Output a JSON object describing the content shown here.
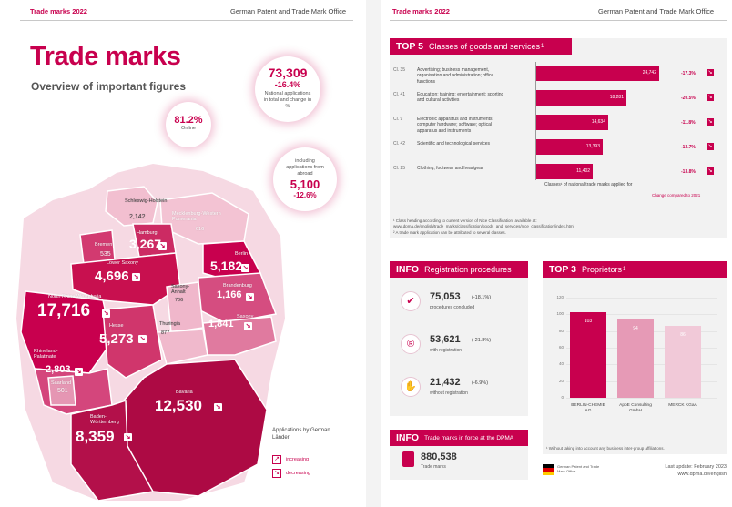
{
  "header": {
    "brand": "Trade marks 2022",
    "office": "German Patent and Trade Mark Office"
  },
  "left": {
    "title": "Trade marks",
    "subtitle": "Overview of important figures",
    "bubble_main": {
      "value": "73,309",
      "change": "-16.4%",
      "caption": "National applications in total and change in %"
    },
    "bubble_online": {
      "value": "81.2%",
      "caption": "Online"
    },
    "bubble_abroad": {
      "caption": "including applications from abroad",
      "value": "5,100",
      "change": "-12.6%"
    },
    "states": [
      {
        "name": "Schleswig-Holstein",
        "value": "2,142"
      },
      {
        "name": "Mecklenburg-Western Pomerania",
        "value": "616"
      },
      {
        "name": "Hamburg",
        "value": "3,267"
      },
      {
        "name": "Bremen",
        "value": "535"
      },
      {
        "name": "Lower Saxony",
        "value": "4,696"
      },
      {
        "name": "Berlin",
        "value": "5,182"
      },
      {
        "name": "Saxony-Anhalt",
        "value": "706"
      },
      {
        "name": "Brandenburg",
        "value": "1,166"
      },
      {
        "name": "North Rhine-Westphalia",
        "value": "17,716"
      },
      {
        "name": "Hesse",
        "value": "5,273"
      },
      {
        "name": "Thuringia",
        "value": "877"
      },
      {
        "name": "Saxony",
        "value": "1,841"
      },
      {
        "name": "Rhineland-Palatinate",
        "value": "2,803"
      },
      {
        "name": "Saarland",
        "value": "501"
      },
      {
        "name": "Bavaria",
        "value": "12,530"
      },
      {
        "name": "Baden-Württemberg",
        "value": "8,359"
      }
    ],
    "map_note": "Applications by German Länder",
    "legend": {
      "increasing": "increasing",
      "decreasing": "decreasing"
    },
    "colors": {
      "accent": "#c8004e"
    }
  },
  "top5": {
    "prefix": "TOP 5",
    "title": "Classes of goods and services",
    "footnote_mark": "1",
    "classes": [
      {
        "code": "Cl. 35",
        "desc": "Advertising; business management, organisation and administration; office functions",
        "value": 24742,
        "label": "24,742",
        "change": "-17.3%"
      },
      {
        "code": "Cl. 41",
        "desc": "Education; training; entertainment; sporting and cultural activities",
        "value": 18281,
        "label": "18,281",
        "change": "-20.5%"
      },
      {
        "code": "Cl. 9",
        "desc": "Electronic apparatus and instruments; computer hardware; software; optical apparatus and instruments",
        "value": 14634,
        "label": "14,634",
        "change": "-11.8%"
      },
      {
        "code": "Cl. 42",
        "desc": "Scientific and technological services",
        "value": 13393,
        "label": "13,393",
        "change": "-13.7%"
      },
      {
        "code": "Cl. 25",
        "desc": "Clothing, footwear and headgear",
        "value": 11402,
        "label": "11,402",
        "change": "-13.8%"
      }
    ],
    "axis_caption": "Classes¹ of national trade marks applied for",
    "change_caption": "Change compared to 2021",
    "footnotes": [
      "¹ Class heading according to current version of Nice Classification, available at: www.dpma.de/english/trade_marks/classification/goods_and_services/nice_classification/index.html",
      "² A trade mark application can be attributed to several classes."
    ]
  },
  "info_registration": {
    "prefix": "INFO",
    "title": "Registration procedures",
    "items": [
      {
        "value": "75,053",
        "change": "(-18.1%)",
        "caption": "procedures concluded",
        "icon": "check-icon"
      },
      {
        "value": "53,621",
        "change": "(-21.8%)",
        "caption": "with registration",
        "icon": "registered-icon"
      },
      {
        "value": "21,432",
        "change": "(-6.9%)",
        "caption": "without registration",
        "icon": "thumbs-down-icon"
      }
    ]
  },
  "info_in_force": {
    "prefix": "INFO",
    "title": "Trade marks in force at the DPMA",
    "value": "880,538",
    "caption": "Trade marks"
  },
  "top3": {
    "prefix": "TOP 3",
    "title": "Proprietors",
    "footnote_mark": "1",
    "footnote": "¹ Without taking into account any business inter-group affiliations.",
    "chart_data": {
      "type": "bar",
      "categories": [
        "BERLIN-CHEMIE AG",
        "ApoE Consulting GmbH",
        "MERCK KGaA"
      ],
      "values": [
        103,
        94,
        86
      ],
      "ylim": [
        0,
        120
      ],
      "yticks": [
        0,
        20,
        40,
        60,
        80,
        100,
        120
      ],
      "colors": [
        "#c8004e",
        "#e69ab6",
        "#f1c9d8"
      ]
    }
  },
  "footer": {
    "office_short": "German Patent and Trade Mark Office",
    "update": "Last update: February 2023",
    "url": "www.dpma.de/english"
  }
}
